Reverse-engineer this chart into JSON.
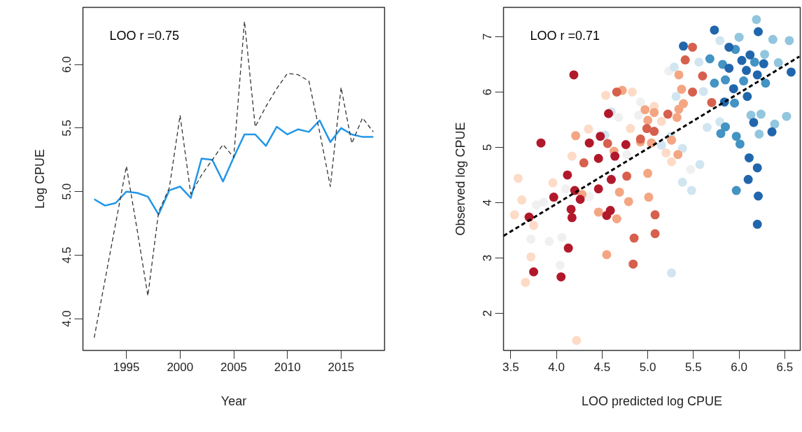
{
  "chart_data": [
    {
      "type": "line",
      "xlabel": "Year",
      "ylabel": "Log CPUE",
      "annotations": [
        "LOO r =0.75"
      ],
      "x": [
        1992,
        1993,
        1994,
        1995,
        1996,
        1997,
        1998,
        1999,
        2000,
        2001,
        2002,
        2003,
        2004,
        2005,
        2006,
        2007,
        2008,
        2009,
        2010,
        2011,
        2012,
        2013,
        2014,
        2015,
        2016,
        2017,
        2018
      ],
      "xlim": [
        1990.95,
        2019.05
      ],
      "ylim": [
        3.75,
        6.45
      ],
      "xticks": [
        1995,
        2000,
        2005,
        2010,
        2015
      ],
      "yticks": [
        {
          "value": 4,
          "label": "4.0"
        },
        {
          "value": 4.5,
          "label": "4.5"
        },
        {
          "value": 5,
          "label": "5.0"
        },
        {
          "value": 5.5,
          "label": "5.5"
        },
        {
          "value": 6,
          "label": "6.0"
        }
      ],
      "series": [
        {
          "color": "#2196e8",
          "line_style": "solid",
          "values": [
            4.94,
            4.89,
            4.91,
            5.0,
            4.99,
            4.96,
            4.82,
            5.01,
            5.04,
            4.95,
            5.26,
            5.25,
            5.08,
            5.27,
            5.45,
            5.45,
            5.36,
            5.51,
            5.45,
            5.49,
            5.47,
            5.56,
            5.39,
            5.5,
            5.45,
            5.43,
            5.43
          ]
        },
        {
          "color": "#333333",
          "line_style": "dashed",
          "values": [
            3.85,
            4.3,
            4.75,
            5.2,
            4.7,
            4.18,
            4.84,
            5.03,
            5.6,
            4.98,
            5.13,
            5.25,
            5.37,
            5.27,
            6.34,
            5.51,
            5.67,
            5.81,
            5.93,
            5.92,
            5.87,
            5.47,
            5.04,
            5.82,
            5.38,
            5.58,
            5.47
          ]
        }
      ]
    },
    {
      "type": "scatter",
      "xlabel": "LOO predicted log CPUE",
      "ylabel": "Observed log CPUE",
      "annotations": [
        "LOO r =0.71"
      ],
      "xlim": [
        3.42,
        6.67
      ],
      "ylim": [
        1.33,
        7.53
      ],
      "xticks": [
        {
          "value": 3.5,
          "label": "3.5"
        },
        {
          "value": 4,
          "label": "4.0"
        },
        {
          "value": 4.5,
          "label": "4.5"
        },
        {
          "value": 5,
          "label": "5.0"
        },
        {
          "value": 5.5,
          "label": "5.5"
        },
        {
          "value": 6,
          "label": "6.0"
        },
        {
          "value": 6.5,
          "label": "6.5"
        }
      ],
      "yticks": [
        2,
        3,
        4,
        5,
        6,
        7
      ],
      "series": [
        {
          "color": "#f0f0f0",
          "marker": "circle",
          "x": [
            5.23,
            4.92,
            4.9,
            4.68,
            4.77,
            5.47,
            4.1,
            3.78,
            3.86,
            3.72,
            3.92,
            4.06,
            4.04,
            4.36
          ],
          "values": [
            6.38,
            5.82,
            5.58,
            5.54,
            4.87,
            4.6,
            4.25,
            3.96,
            4.01,
            3.34,
            3.3,
            3.37,
            2.87,
            4.11
          ]
        },
        {
          "color": "#fddbc7",
          "marker": "circle",
          "x": [
            4.54,
            4.83,
            5.07,
            5.15,
            4.81,
            4.35,
            4.17,
            5.2,
            5.26,
            3.58,
            3.62,
            3.54,
            3.75,
            3.72,
            3.66,
            4.22,
            3.96
          ],
          "values": [
            5.94,
            6.0,
            5.74,
            5.47,
            5.34,
            5.33,
            4.84,
            4.9,
            4.74,
            4.44,
            4.05,
            3.78,
            3.59,
            3.02,
            2.56,
            1.51,
            4.36
          ]
        },
        {
          "color": "#d1e5f0",
          "marker": "circle",
          "x": [
            5.79,
            5.29,
            5.56,
            5.31,
            5.61,
            5.79,
            5.65,
            5.25,
            5.15,
            5.38,
            5.57,
            4.6,
            4.53,
            5.38,
            5.48,
            5.26
          ],
          "values": [
            6.93,
            6.45,
            6.54,
            5.92,
            6.01,
            5.46,
            5.36,
            5.2,
            5.04,
            4.98,
            4.69,
            5.64,
            5.22,
            4.37,
            4.22,
            2.73
          ]
        },
        {
          "color": "#f4a582",
          "marker": "circle",
          "x": [
            5.34,
            5.37,
            5.39,
            4.97,
            5.07,
            5.0,
            5.34,
            5.32,
            4.72,
            5.26,
            5.04,
            5.33,
            4.63,
            4.92,
            4.21,
            4.69,
            4.79,
            5.01,
            4.46,
            4.66,
            4.55,
            5.0,
            4.28
          ],
          "values": [
            6.31,
            6.05,
            5.79,
            5.68,
            5.63,
            5.49,
            5.69,
            5.54,
            6.03,
            5.13,
            5.08,
            4.87,
            4.93,
            5.1,
            5.21,
            4.19,
            4.02,
            4.1,
            3.83,
            3.71,
            3.06,
            4.53,
            4.15
          ]
        },
        {
          "color": "#92c5de",
          "marker": "circle",
          "x": [
            6.19,
            6.0,
            6.37,
            6.55,
            6.28,
            6.43,
            6.13,
            6.24,
            6.52,
            6.39,
            6.22
          ],
          "values": [
            7.31,
            6.99,
            6.95,
            6.93,
            6.68,
            6.53,
            5.58,
            5.6,
            5.56,
            5.42,
            5.24
          ]
        },
        {
          "color": "#d6604d",
          "marker": "circle",
          "x": [
            5.49,
            5.41,
            5.6,
            5.49,
            4.66,
            5.22,
            4.99,
            5.07,
            4.92,
            4.56,
            4.3,
            5.7,
            4.85,
            5.08,
            5.08,
            4.84,
            4.77
          ],
          "values": [
            6.81,
            6.58,
            6.29,
            6.0,
            6.0,
            5.6,
            5.34,
            5.29,
            5.15,
            5.07,
            4.72,
            5.81,
            3.36,
            3.78,
            3.44,
            2.89,
            4.48
          ]
        },
        {
          "color": "#4393c3",
          "marker": "circle",
          "x": [
            5.68,
            5.82,
            5.96,
            5.85,
            5.73,
            6.05,
            6.29,
            5.95,
            5.8,
            5.85,
            5.97,
            6.01,
            6.17,
            5.97
          ],
          "values": [
            6.6,
            6.5,
            6.77,
            6.22,
            6.16,
            6.2,
            6.16,
            5.8,
            5.25,
            5.37,
            5.2,
            5.06,
            6.54,
            4.22
          ]
        },
        {
          "color": "#b2182b",
          "marker": "circle",
          "x": [
            4.19,
            3.83,
            4.36,
            4.76,
            4.48,
            4.57,
            4.46,
            4.64,
            4.12,
            4.6,
            4.2,
            3.97,
            4.16,
            4.17,
            4.46,
            3.7,
            4.13,
            3.75,
            4.05,
            4.55,
            4.59,
            4.26
          ],
          "values": [
            6.31,
            5.08,
            5.08,
            5.05,
            5.2,
            5.61,
            4.8,
            4.84,
            4.5,
            4.42,
            4.22,
            4.1,
            3.88,
            3.73,
            4.25,
            3.74,
            3.18,
            2.75,
            2.66,
            3.77,
            3.86,
            4.06
          ]
        },
        {
          "color": "#2166ac",
          "marker": "circle",
          "x": [
            5.73,
            6.21,
            5.39,
            5.89,
            6.12,
            6.03,
            5.89,
            6.08,
            6.2,
            6.27,
            6.57,
            5.94,
            6.09,
            5.84,
            6.16,
            6.36,
            6.11,
            6.2,
            6.1,
            6.21,
            6.2
          ],
          "values": [
            7.12,
            7.09,
            6.83,
            6.81,
            6.67,
            6.57,
            6.43,
            6.39,
            6.31,
            6.51,
            6.36,
            6.06,
            5.92,
            5.82,
            5.45,
            5.28,
            4.81,
            4.63,
            4.42,
            4.12,
            3.61
          ]
        },
        {
          "type": "line",
          "color": "#000000",
          "line_style": "dashed",
          "x": [
            3.42,
            6.66
          ],
          "values": [
            3.4,
            6.64
          ]
        }
      ]
    }
  ]
}
